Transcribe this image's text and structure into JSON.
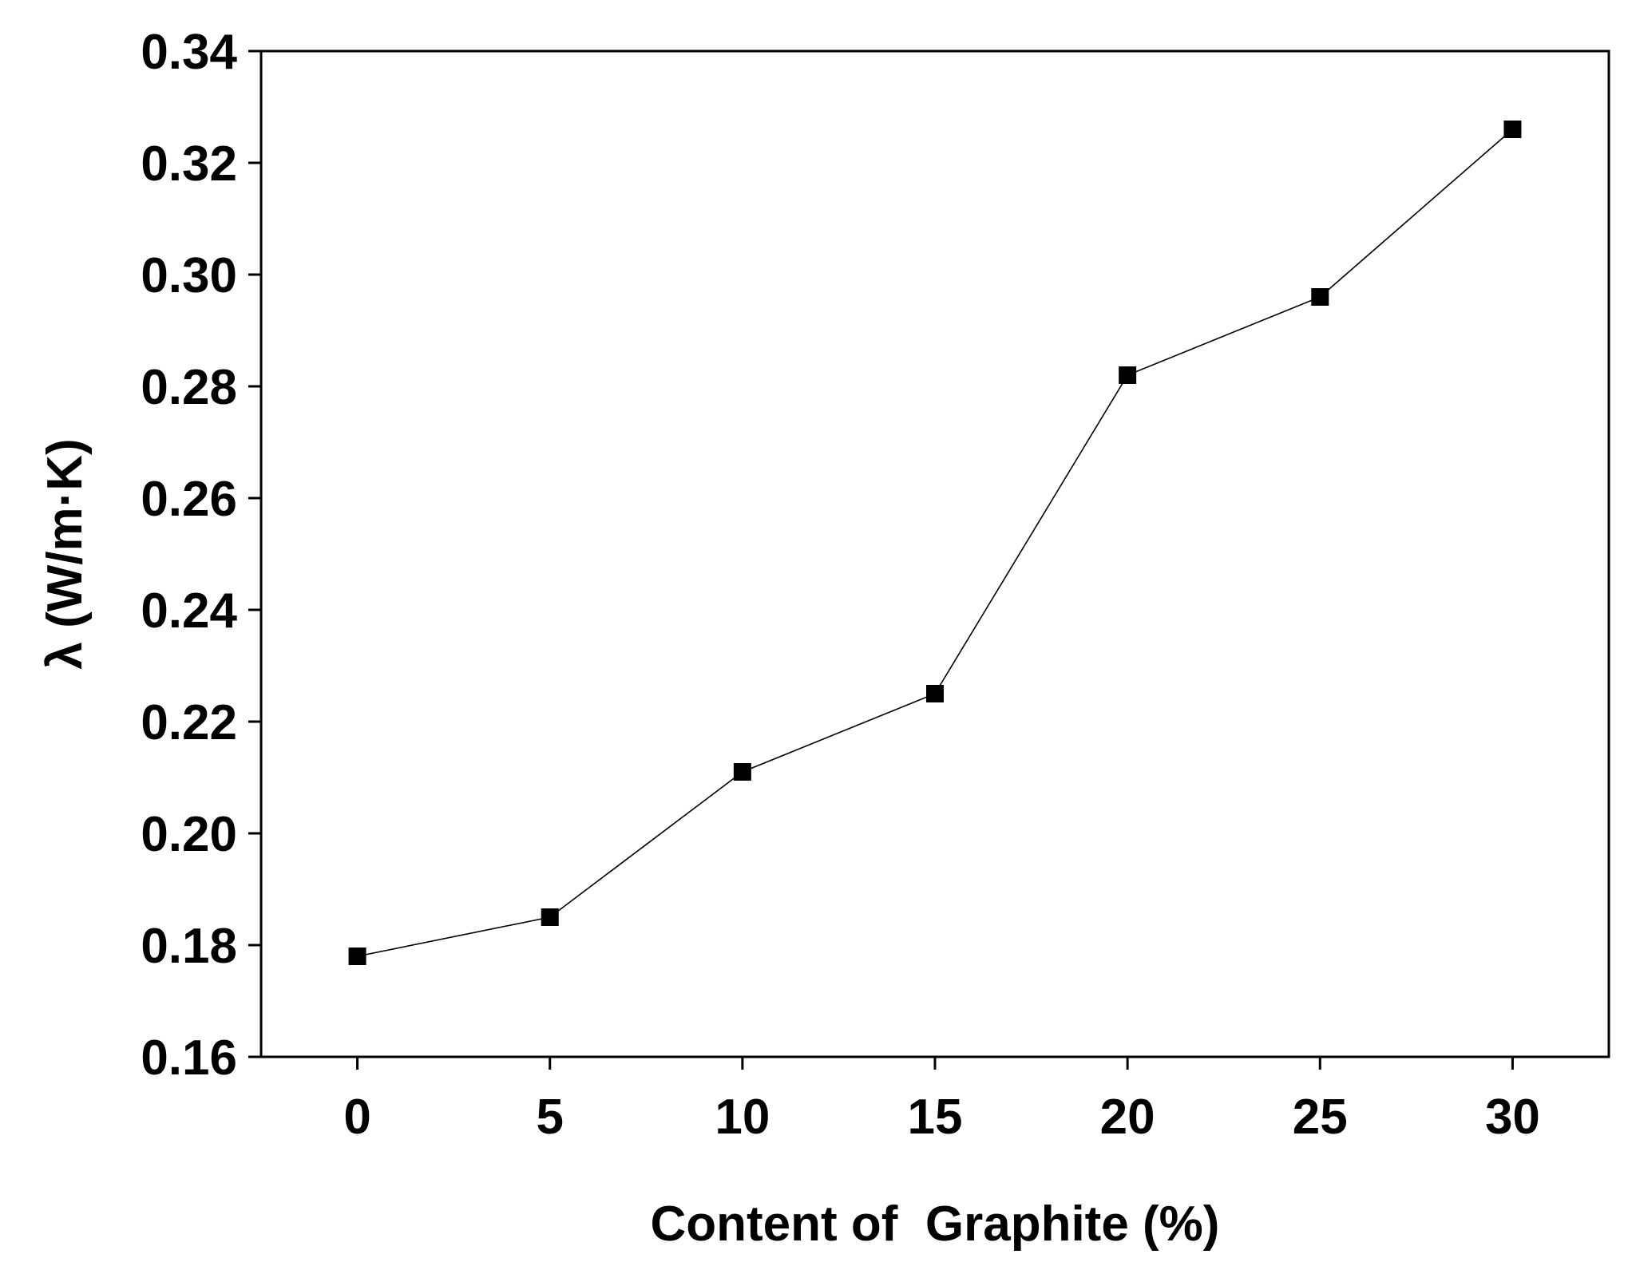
{
  "chart_data": {
    "type": "line",
    "title": "",
    "xlabel": "Content of  Graphite (%)",
    "ylabel": "λ (W/m·K)",
    "x": [
      0,
      5,
      10,
      15,
      20,
      25,
      30
    ],
    "series": [
      {
        "values": [
          0.178,
          0.185,
          0.211,
          0.225,
          0.282,
          0.296,
          0.326
        ],
        "marker": "square",
        "color": "#000000"
      }
    ],
    "xlim": [
      -2.5,
      32.5
    ],
    "ylim": [
      0.16,
      0.34
    ],
    "xticks": [
      0,
      5,
      10,
      15,
      20,
      25,
      30
    ],
    "xtick_labels": [
      "0",
      "5",
      "10",
      "15",
      "20",
      "25",
      "30"
    ],
    "yticks": [
      0.16,
      0.18,
      0.2,
      0.22,
      0.24,
      0.26,
      0.28,
      0.3,
      0.32,
      0.34
    ],
    "ytick_labels": [
      "0.16",
      "0.18",
      "0.20",
      "0.22",
      "0.24",
      "0.26",
      "0.28",
      "0.30",
      "0.32",
      "0.34"
    ],
    "grid": false,
    "legend": "none"
  }
}
